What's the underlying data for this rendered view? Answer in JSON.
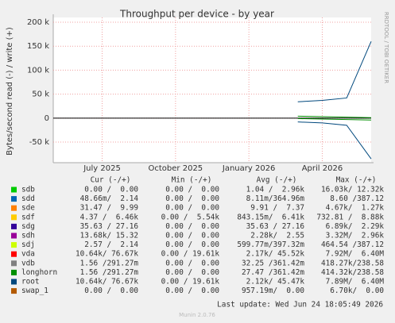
{
  "chart_data": {
    "type": "line",
    "title": "Throughput per device - by year",
    "y_label": "Bytes/second read (-) / write (+)",
    "side_label": "RRDTOOL / TOBI OETIKER",
    "xlim": [
      "2025-05",
      "2026-06"
    ],
    "xticks": [
      {
        "value": "2025-07",
        "label": "July 2025"
      },
      {
        "value": "2025-10",
        "label": "October 2025"
      },
      {
        "value": "2026-01",
        "label": "January 2026"
      },
      {
        "value": "2026-04",
        "label": "April 2026"
      }
    ],
    "ylim": [
      -93000,
      210000
    ],
    "yticks": [
      {
        "value": -50000,
        "label": "-50 k"
      },
      0,
      {
        "value": 50000,
        "label": "50 k"
      },
      {
        "value": 100000,
        "label": "100 k"
      },
      {
        "value": 150000,
        "label": "150 k"
      },
      {
        "value": 200000,
        "label": "200 k"
      }
    ],
    "grid": true,
    "x": [
      "2026-03",
      "2026-04",
      "2026-05",
      "2026-06"
    ],
    "stat_headers": [
      "Cur (-/+)",
      "Min (-/+)",
      "Avg (-/+)",
      "Max (-/+)"
    ],
    "series": [
      {
        "name": "sdb",
        "color": "#00cc00",
        "cur": "0.00 /  0.00",
        "min": "0.00 /  0.00",
        "avg": "1.04 /  2.96k",
        "max": "16.03k/ 12.32k"
      },
      {
        "name": "sdd",
        "color": "#0066b3",
        "cur": "48.66m/  2.14",
        "min": "0.00 /  0.00",
        "avg": "8.11m/364.96m",
        "max": "8.60 /387.12"
      },
      {
        "name": "sde",
        "color": "#ff8000",
        "cur": "31.47 /  9.99",
        "min": "0.00 /  0.00",
        "avg": "9.91 /  7.37",
        "max": "4.67k/  1.27k"
      },
      {
        "name": "sdf",
        "color": "#ffcc00",
        "cur": "4.37 /  6.46k",
        "min": "0.00 /  5.54k",
        "avg": "843.15m/  6.41k",
        "max": "732.81 /  8.88k"
      },
      {
        "name": "sdg",
        "color": "#330099",
        "cur": "35.63 / 27.16",
        "min": "0.00 /  0.00",
        "avg": "35.63 / 27.16",
        "max": "6.89k/  2.29k"
      },
      {
        "name": "sdh",
        "color": "#990099",
        "cur": "13.68k/ 15.32",
        "min": "0.00 /  0.00",
        "avg": "2.28k/  2.55",
        "max": "3.32M/  2.96k"
      },
      {
        "name": "sdj",
        "color": "#ccff00",
        "cur": "2.57 /  2.14",
        "min": "0.00 /  0.00",
        "avg": "599.77m/397.32m",
        "max": "464.54 /387.12"
      },
      {
        "name": "vda",
        "color": "#ff0000",
        "cur": "10.64k/ 76.67k",
        "min": "0.00 / 19.61k",
        "avg": "2.17k/ 45.52k",
        "max": "7.92M/  6.40M"
      },
      {
        "name": "vdb",
        "color": "#808080",
        "cur": "1.56 /291.27m",
        "min": "0.00 /  0.00",
        "avg": "32.25 /361.42m",
        "max": "418.27k/238.58"
      },
      {
        "name": "longhorn",
        "color": "#008f00",
        "cur": "1.56 /291.27m",
        "min": "0.00 /  0.00",
        "avg": "27.47 /361.42m",
        "max": "414.32k/238.58",
        "values": [
          4000,
          3000,
          2000,
          1000
        ],
        "values_read": [
          -1000,
          -2000,
          -3000,
          -4000
        ]
      },
      {
        "name": "root",
        "color": "#00487d",
        "cur": "10.64k/ 76.67k",
        "min": "0.00 / 19.61k",
        "avg": "2.12k/ 45.47k",
        "max": "7.89M/  6.40M",
        "values": [
          34000,
          37000,
          42000,
          160000
        ],
        "values_read": [
          -8000,
          -10000,
          -15000,
          -85000
        ]
      },
      {
        "name": "swap_1",
        "color": "#b35a00",
        "cur": "0.00 /  0.00",
        "min": "0.00 /  0.00",
        "avg": "957.19m/  0.00",
        "max": "6.70k/  0.00"
      }
    ],
    "last_update": "Last update: Wed Jun 24 18:05:49 2026",
    "footer": "Munin 2.0.76"
  }
}
